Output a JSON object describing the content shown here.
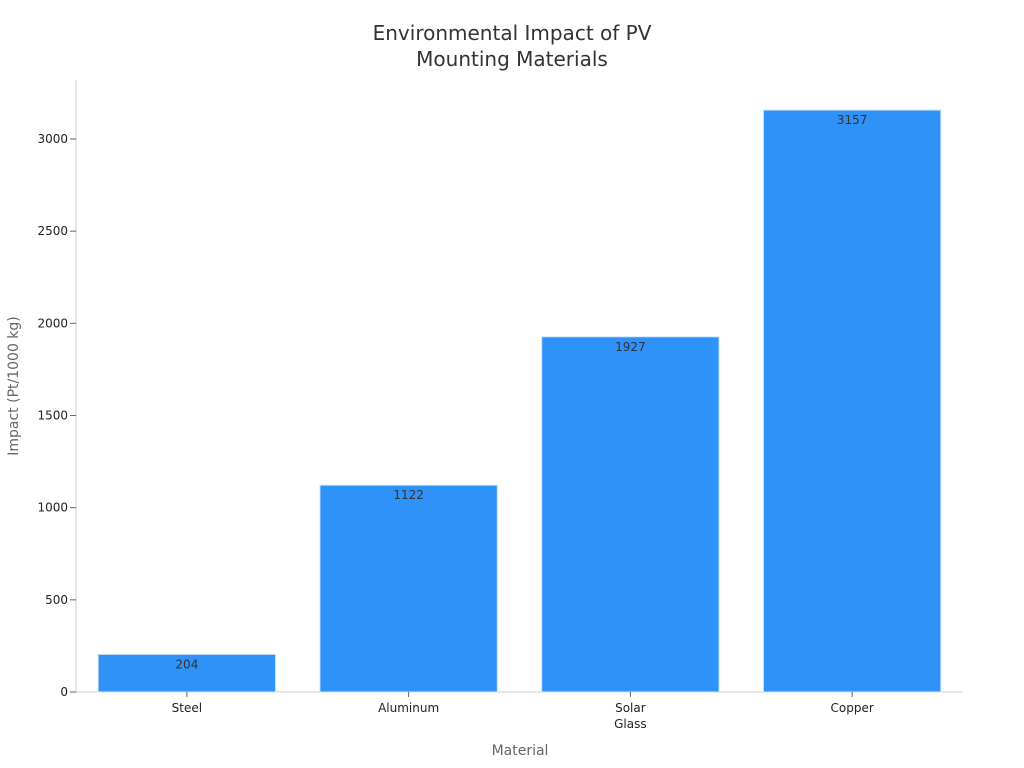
{
  "chart_data": {
    "type": "bar",
    "title": [
      "Environmental Impact of PV",
      "Mounting Materials"
    ],
    "xlabel": "Material",
    "ylabel": "Impact (Pt/1000 kg)",
    "categories": [
      "Steel",
      "Aluminum",
      "Solar Glass",
      "Copper"
    ],
    "category_label_lines": [
      [
        "Steel"
      ],
      [
        "Aluminum"
      ],
      [
        "Solar",
        "Glass"
      ],
      [
        "Copper"
      ]
    ],
    "values": [
      204,
      1122,
      1927,
      3157
    ],
    "data_labels": [
      "204",
      "1122",
      "1927",
      "3157"
    ],
    "ylim": [
      0,
      3320
    ],
    "yticks": [
      0,
      500,
      1000,
      1500,
      2000,
      2500,
      3000
    ],
    "bar_color": "#2f92f8",
    "bar_edge_color": "#d0e4f7",
    "grid": false,
    "legend": "none"
  }
}
